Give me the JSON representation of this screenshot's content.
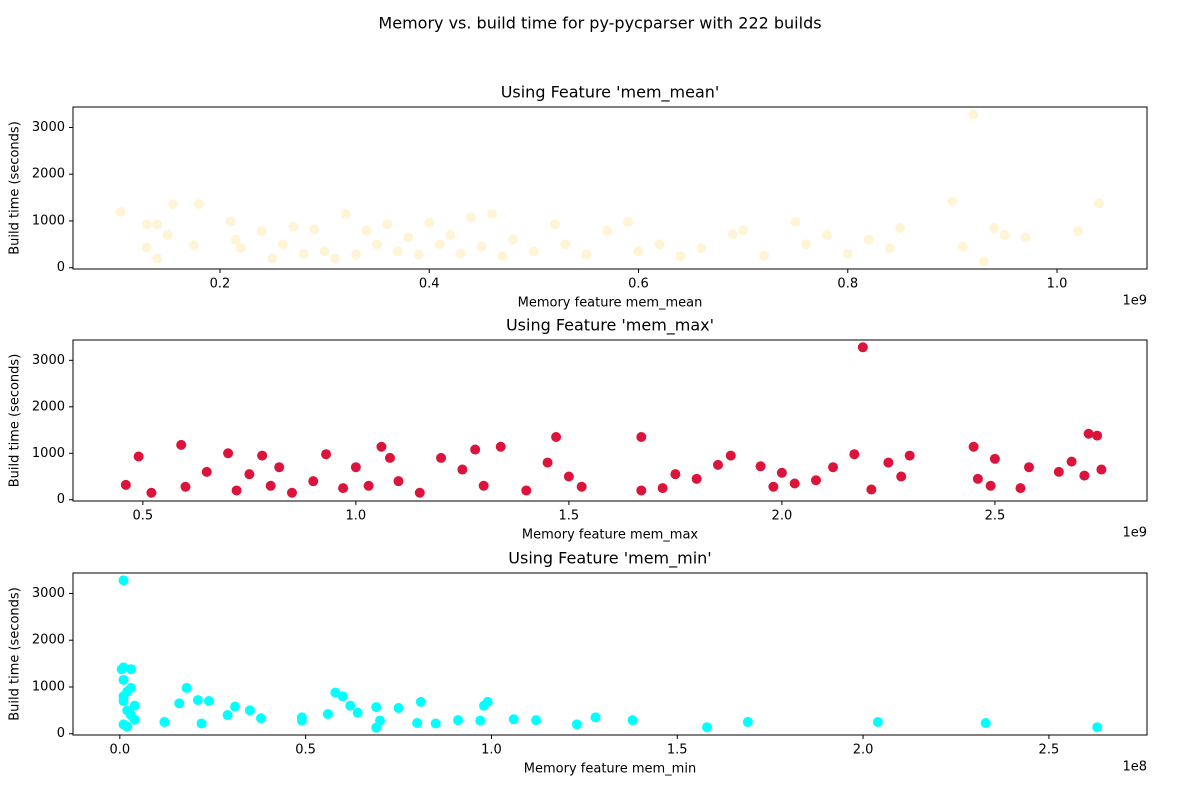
{
  "title": "Memory vs. build time for py-pycparser with 222 builds",
  "chart_data": [
    {
      "type": "scatter",
      "title": "Using Feature 'mem_mean'",
      "xlabel": "Memory feature mem_mean",
      "ylabel": "Build time (seconds)",
      "x_offset_label": "1e9",
      "xlim": [
        0.0595,
        1.086
      ],
      "ylim": [
        -27,
        3437
      ],
      "xticks": [
        0.2,
        0.4,
        0.6,
        0.8,
        {
          "value": 1,
          "label": "1.0"
        }
      ],
      "yticks": [
        0,
        1000,
        2000,
        3000
      ],
      "series": [
        {
          "color": "#fff5d6",
          "x": [
            0.105,
            0.13,
            0.14,
            0.13,
            0.14,
            0.15,
            0.155,
            0.175,
            0.18,
            0.21,
            0.215,
            0.22,
            0.24,
            0.25,
            0.26,
            0.27,
            0.28,
            0.29,
            0.3,
            0.31,
            0.32,
            0.33,
            0.34,
            0.35,
            0.36,
            0.37,
            0.38,
            0.39,
            0.4,
            0.41,
            0.42,
            0.43,
            0.44,
            0.45,
            0.46,
            0.47,
            0.48,
            0.5,
            0.52,
            0.53,
            0.55,
            0.57,
            0.59,
            0.6,
            0.62,
            0.64,
            0.66,
            0.69,
            0.7,
            0.72,
            0.75,
            0.76,
            0.78,
            0.8,
            0.82,
            0.84,
            0.85,
            0.9,
            0.91,
            0.92,
            0.93,
            0.94,
            0.95,
            0.97,
            1.02,
            1.04
          ],
          "values": [
            1190,
            930,
            930,
            430,
            200,
            700,
            1360,
            480,
            1360,
            990,
            600,
            420,
            780,
            200,
            500,
            880,
            300,
            820,
            350,
            200,
            1150,
            280,
            800,
            500,
            930,
            350,
            650,
            280,
            960,
            500,
            700,
            300,
            1080,
            450,
            1150,
            250,
            600,
            350,
            930,
            500,
            280,
            800,
            980,
            350,
            500,
            250,
            420,
            720,
            800,
            260,
            980,
            500,
            700,
            300,
            600,
            420,
            850,
            1420,
            450,
            3280,
            140,
            850,
            700,
            650,
            780,
            1380
          ]
        }
      ]
    },
    {
      "type": "scatter",
      "title": "Using Feature 'mem_max'",
      "xlabel": "Memory feature mem_max",
      "ylabel": "Build time (seconds)",
      "x_offset_label": "1e9",
      "xlim": [
        0.336,
        2.857
      ],
      "ylim": [
        -27,
        3437
      ],
      "xticks": [
        0.5,
        {
          "value": 1,
          "label": "1.0"
        },
        1.5,
        {
          "value": 2,
          "label": "2.0"
        },
        2.5
      ],
      "yticks": [
        0,
        1000,
        2000,
        3000
      ],
      "series": [
        {
          "color": "#dc143c",
          "x": [
            0.46,
            0.49,
            0.52,
            0.59,
            0.6,
            0.65,
            0.7,
            0.72,
            0.75,
            0.78,
            0.8,
            0.82,
            0.85,
            0.9,
            0.93,
            0.97,
            1.0,
            1.03,
            1.06,
            1.08,
            1.1,
            1.15,
            1.2,
            1.25,
            1.28,
            1.3,
            1.34,
            1.4,
            1.45,
            1.47,
            1.5,
            1.53,
            1.67,
            1.67,
            1.72,
            1.75,
            1.8,
            1.85,
            1.88,
            1.95,
            1.98,
            2.0,
            2.03,
            2.08,
            2.12,
            2.17,
            2.19,
            2.21,
            2.25,
            2.28,
            2.3,
            2.45,
            2.46,
            2.49,
            2.5,
            2.56,
            2.58,
            2.65,
            2.68,
            2.71,
            2.72,
            2.74,
            2.75
          ],
          "values": [
            320,
            930,
            150,
            1180,
            280,
            600,
            1000,
            200,
            550,
            950,
            300,
            700,
            150,
            400,
            980,
            250,
            700,
            300,
            1140,
            900,
            400,
            150,
            900,
            650,
            1080,
            300,
            1140,
            200,
            800,
            1350,
            500,
            280,
            1350,
            200,
            250,
            550,
            450,
            750,
            950,
            720,
            280,
            580,
            350,
            420,
            700,
            980,
            3280,
            220,
            800,
            500,
            950,
            1140,
            450,
            300,
            880,
            250,
            700,
            600,
            820,
            520,
            1420,
            1380,
            650
          ]
        }
      ]
    },
    {
      "type": "scatter",
      "title": "Using Feature 'mem_min'",
      "xlabel": "Memory feature mem_min",
      "ylabel": "Build time (seconds)",
      "x_offset_label": "1e8",
      "xlim": [
        -0.126,
        2.764
      ],
      "ylim": [
        -27,
        3437
      ],
      "xticks": [
        {
          "value": 0,
          "label": "0.0"
        },
        0.5,
        {
          "value": 1,
          "label": "1.0"
        },
        1.5,
        {
          "value": 2,
          "label": "2.0"
        },
        2.5
      ],
      "yticks": [
        0,
        1000,
        2000,
        3000
      ],
      "series": [
        {
          "color": "#00ffff",
          "x": [
            0.01,
            0.01,
            0.005,
            0.01,
            0.02,
            0.03,
            0.01,
            0.02,
            0.04,
            0.01,
            0.03,
            0.04,
            0.02,
            0.03,
            0.01,
            0.12,
            0.16,
            0.18,
            0.21,
            0.22,
            0.24,
            0.29,
            0.31,
            0.35,
            0.38,
            0.49,
            0.49,
            0.56,
            0.58,
            0.6,
            0.62,
            0.64,
            0.69,
            0.69,
            0.7,
            0.75,
            0.8,
            0.81,
            0.85,
            0.91,
            0.97,
            0.98,
            0.99,
            1.06,
            1.12,
            1.23,
            1.28,
            1.38,
            1.58,
            1.69,
            2.04,
            2.33,
            2.63
          ],
          "values": [
            3280,
            1420,
            1380,
            1150,
            900,
            1380,
            700,
            500,
            300,
            200,
            980,
            600,
            150,
            400,
            800,
            250,
            650,
            980,
            720,
            220,
            700,
            400,
            580,
            500,
            330,
            280,
            350,
            420,
            880,
            800,
            600,
            450,
            570,
            130,
            280,
            550,
            230,
            680,
            220,
            290,
            280,
            600,
            680,
            310,
            290,
            200,
            350,
            290,
            140,
            250,
            250,
            230,
            140
          ]
        }
      ]
    }
  ]
}
